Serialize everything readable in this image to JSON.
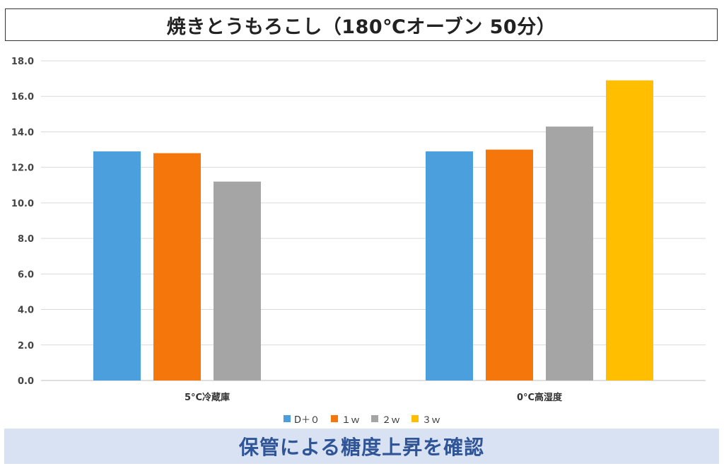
{
  "title": "焼きとうもろこし（180℃オーブン 50分）",
  "footer": "保管による糖度上昇を確認",
  "chart_data": {
    "type": "bar",
    "categories": [
      "5°C冷蔵庫",
      "0°C高湿度"
    ],
    "series": [
      {
        "name": "D＋０",
        "color": "#4a9fdc",
        "values": [
          12.9,
          12.9
        ]
      },
      {
        "name": "１ｗ",
        "color": "#f5760b",
        "values": [
          12.8,
          13.0
        ]
      },
      {
        "name": "２ｗ",
        "color": "#a5a5a5",
        "values": [
          11.2,
          14.3
        ]
      },
      {
        "name": "３ｗ",
        "color": "#ffbf00",
        "values": [
          null,
          16.9
        ]
      }
    ],
    "ylim": [
      0,
      18
    ],
    "yticks": [
      "0.0",
      "2.0",
      "4.0",
      "6.0",
      "8.0",
      "10.0",
      "12.0",
      "14.0",
      "16.0",
      "18.0"
    ],
    "grid": true,
    "legend_position": "bottom"
  }
}
